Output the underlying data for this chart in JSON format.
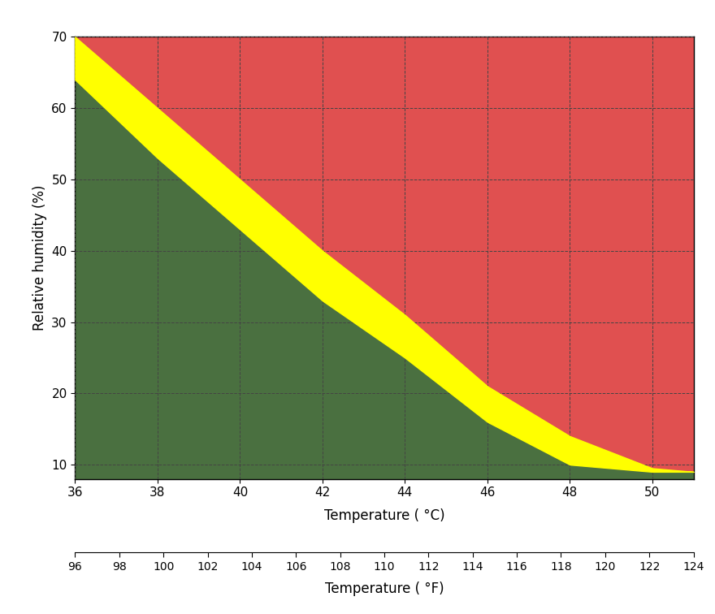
{
  "temp_c_min": 36,
  "temp_c_max": 51,
  "rh_min": 8,
  "rh_max": 70,
  "ylabel": "Relative humidity (%)",
  "xlabel_c": "Temperature ( °C)",
  "xlabel_f": "Temperature ( °F)",
  "color_red": "#e05050",
  "color_yellow": "#ffff00",
  "color_green": "#4a7040",
  "background_color": "#ffffff",
  "grid_color": "#444444",
  "yticks": [
    10,
    20,
    30,
    40,
    50,
    60,
    70
  ],
  "xticks_c": [
    36,
    38,
    40,
    42,
    44,
    46,
    48,
    50
  ],
  "xticks_f": [
    96,
    98,
    100,
    102,
    104,
    106,
    108,
    110,
    112,
    114,
    116,
    118,
    120,
    122,
    124
  ],
  "upper_points_T": [
    36,
    38,
    40,
    42,
    44,
    46,
    48,
    50,
    51
  ],
  "upper_points_RH": [
    70,
    60,
    50,
    40,
    31,
    21,
    14,
    9.5,
    9
  ],
  "lower_points_T": [
    36,
    38,
    40,
    42,
    44,
    46,
    48,
    50,
    51
  ],
  "lower_points_RH": [
    64,
    53,
    43,
    33,
    25,
    16,
    10,
    9,
    9
  ]
}
